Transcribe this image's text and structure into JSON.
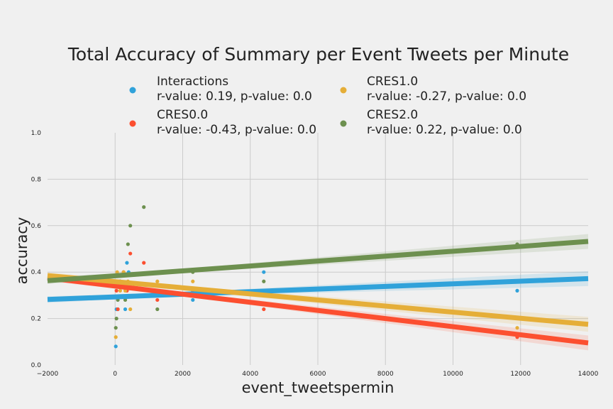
{
  "chart_data": {
    "type": "scatter",
    "title": "Total Accuracy of Summary per Event Tweets per Minute",
    "xlabel": "event_tweetspermin",
    "ylabel": "accuracy",
    "xlim": [
      -2000,
      14000
    ],
    "ylim": [
      0.0,
      1.0
    ],
    "grid": true,
    "legend_placement": "top, two columns",
    "x_ticks": [
      "−2000",
      "0",
      "2000",
      "4000",
      "6000",
      "8000",
      "10000",
      "12000",
      "14000"
    ],
    "y_ticks": [
      "0.0",
      "0.2",
      "0.4",
      "0.6",
      "0.8",
      "1.0"
    ],
    "series": [
      {
        "name": "Interactions",
        "legend_line1": " Interactions",
        "legend_line2": "r-value: 0.19, p-value: 0.0",
        "color": "#30a2da",
        "points": [
          [
            20,
            0.08
          ],
          [
            40,
            0.24
          ],
          [
            80,
            0.24
          ],
          [
            150,
            0.36
          ],
          [
            300,
            0.24
          ],
          [
            350,
            0.44
          ],
          [
            400,
            0.4
          ],
          [
            2300,
            0.28
          ],
          [
            4400,
            0.4
          ],
          [
            11900,
            0.32
          ]
        ],
        "fit": [
          0.282,
          0.372
        ]
      },
      {
        "name": "CRES0.0",
        "legend_line1": "CRES0.0",
        "legend_line2": "r-value: -0.43, p-value: 0.0",
        "color": "#fc4f30",
        "points": [
          [
            40,
            0.32
          ],
          [
            80,
            0.24
          ],
          [
            250,
            0.4
          ],
          [
            350,
            0.32
          ],
          [
            450,
            0.48
          ],
          [
            850,
            0.44
          ],
          [
            1250,
            0.28
          ],
          [
            2300,
            0.32
          ],
          [
            4400,
            0.24
          ],
          [
            11900,
            0.12
          ]
        ],
        "fit": [
          0.375,
          0.095
        ]
      },
      {
        "name": "CRES1.0",
        "legend_line1": "CRES1.0",
        "legend_line2": "r-value: -0.27, p-value: 0.0",
        "color": "#e5ae38",
        "points": [
          [
            20,
            0.12
          ],
          [
            60,
            0.4
          ],
          [
            100,
            0.36
          ],
          [
            150,
            0.32
          ],
          [
            250,
            0.4
          ],
          [
            300,
            0.32
          ],
          [
            380,
            0.36
          ],
          [
            450,
            0.24
          ],
          [
            1250,
            0.36
          ],
          [
            2300,
            0.36
          ],
          [
            11900,
            0.16
          ]
        ],
        "fit": [
          0.385,
          0.175
        ]
      },
      {
        "name": "CRES2.0",
        "legend_line1": "CRES2.0",
        "legend_line2": "r-value: 0.22, p-value: 0.0",
        "color": "#6d904f",
        "points": [
          [
            20,
            0.16
          ],
          [
            40,
            0.2
          ],
          [
            80,
            0.28
          ],
          [
            150,
            0.36
          ],
          [
            300,
            0.28
          ],
          [
            380,
            0.52
          ],
          [
            450,
            0.6
          ],
          [
            850,
            0.68
          ],
          [
            1250,
            0.24
          ],
          [
            2300,
            0.4
          ],
          [
            4400,
            0.36
          ],
          [
            11900,
            0.52
          ]
        ],
        "fit": [
          0.363,
          0.532
        ]
      }
    ]
  }
}
